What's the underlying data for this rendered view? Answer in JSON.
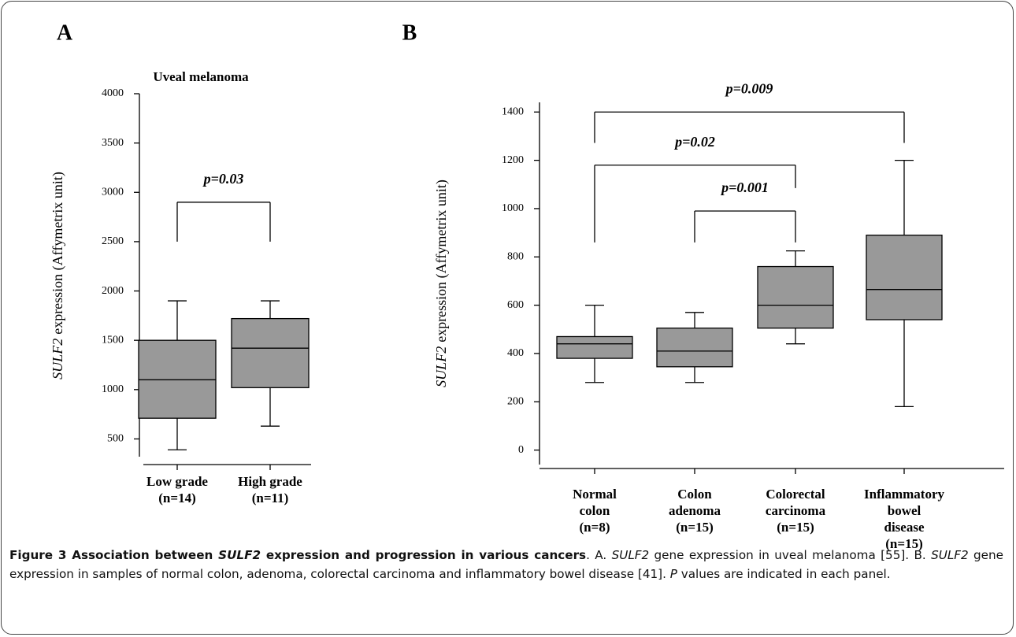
{
  "chart_data": [
    {
      "type": "box",
      "panel_label": "A",
      "title": "Uveal melanoma",
      "ylabel": {
        "gene": "SULF2",
        "unit": "expression (Affymetrix unit)"
      },
      "categories": [
        [
          "Low grade",
          "(n=14)"
        ],
        [
          "High grade",
          "(n=11)"
        ]
      ],
      "boxes": [
        {
          "whislo": 390,
          "q1": 710,
          "med": 1100,
          "q3": 1500,
          "whishi": 1900
        },
        {
          "whislo": 630,
          "q1": 1020,
          "med": 1420,
          "q3": 1720,
          "whishi": 1900
        }
      ],
      "color": "#999999",
      "ylim": [
        320,
        4000
      ],
      "yticks": [
        500,
        1000,
        1500,
        2000,
        2500,
        3000,
        3500,
        4000
      ],
      "annotations": [
        {
          "text": "p=0.03",
          "from": 0,
          "to": 1,
          "y": 2900,
          "ends": [
            2500,
            2500
          ]
        }
      ]
    },
    {
      "type": "box",
      "panel_label": "B",
      "ylabel": {
        "gene": "SULF2",
        "unit": "expression (Affymetrix unit)"
      },
      "categories": [
        [
          "Normal",
          "colon",
          "(n=8)"
        ],
        [
          "Colon",
          "adenoma",
          "(n=15)"
        ],
        [
          "Colorectal",
          "carcinoma",
          "(n=15)"
        ],
        [
          "Inflammatory",
          "bowel",
          "disease",
          "(n=15)"
        ]
      ],
      "boxes": [
        {
          "whislo": 280,
          "q1": 380,
          "med": 440,
          "q3": 470,
          "whishi": 600
        },
        {
          "whislo": 280,
          "q1": 345,
          "med": 410,
          "q3": 505,
          "whishi": 570
        },
        {
          "whislo": 440,
          "q1": 505,
          "med": 600,
          "q3": 760,
          "whishi": 825
        },
        {
          "whislo": 180,
          "q1": 540,
          "med": 665,
          "q3": 890,
          "whishi": 1200
        }
      ],
      "color": "#999999",
      "ylim": [
        -60,
        1440
      ],
      "yticks": [
        0,
        200,
        400,
        600,
        800,
        1000,
        1200,
        1400
      ],
      "annotations": [
        {
          "text": "p=0.009",
          "from": 0,
          "to": 3,
          "y": 1400,
          "ends": [
            1272,
            1272
          ]
        },
        {
          "text": "p=0.02",
          "from": 0,
          "to": 2,
          "y": 1180,
          "ends": [
            860,
            1085
          ]
        },
        {
          "text": "p=0.001",
          "from": 1,
          "to": 2,
          "y": 990,
          "ends": [
            860,
            860
          ]
        }
      ]
    }
  ],
  "caption": [
    "Figure 3 Association between ",
    "SULF2",
    " expression and progression in various cancers",
    ". A. ",
    "SULF2",
    " gene expression in uveal melanoma [55]. B. ",
    "SULF2",
    " gene expression in samples of normal colon, adenoma, colorectal carcinoma and inflammatory bowel disease [41]. ",
    "P",
    " values are indicated in each panel."
  ]
}
